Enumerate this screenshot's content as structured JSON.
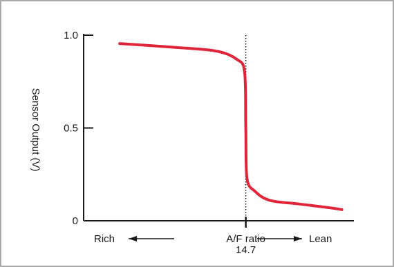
{
  "chart_data": {
    "type": "line",
    "title": "",
    "ylabel": "Sensor Output (V)",
    "xlabel": "A/F ratio",
    "x_left_label": "Rich",
    "x_right_label": "Lean",
    "x_tick_value_label": "14.7",
    "ylim": [
      0,
      1.0
    ],
    "y_ticks": [
      {
        "value": 0,
        "label": "0"
      },
      {
        "value": 0.5,
        "label": "0.5"
      },
      {
        "value": 1.0,
        "label": "1.0"
      }
    ],
    "xlim": [
      12.0,
      16.5
    ],
    "stoich_line": 14.7,
    "grid": false,
    "series": [
      {
        "color": "#e0243a",
        "points": [
          [
            12.6,
            0.955
          ],
          [
            13.5,
            0.935
          ],
          [
            14.2,
            0.915
          ],
          [
            14.55,
            0.87
          ],
          [
            14.68,
            0.8
          ],
          [
            14.7,
            0.5
          ],
          [
            14.72,
            0.23
          ],
          [
            14.85,
            0.16
          ],
          [
            15.1,
            0.11
          ],
          [
            15.6,
            0.09
          ],
          [
            16.1,
            0.07
          ],
          [
            16.3,
            0.06
          ]
        ]
      }
    ]
  }
}
